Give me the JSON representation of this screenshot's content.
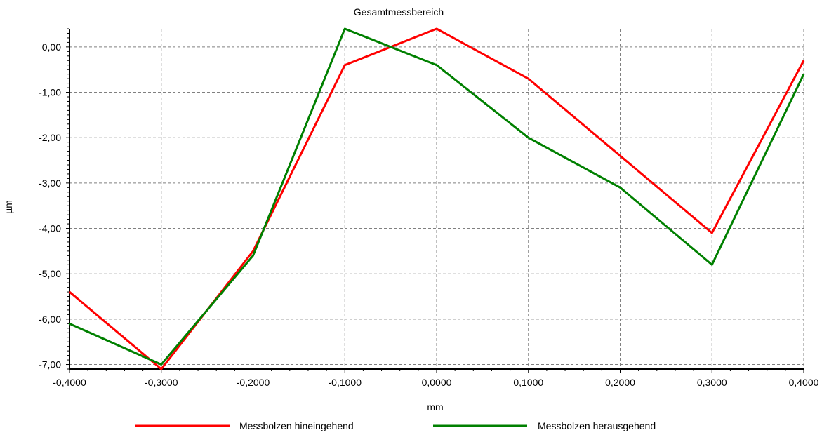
{
  "chart_data": {
    "type": "line",
    "title": "Gesamtmessbereich",
    "xlabel": "mm",
    "ylabel": "µm",
    "xlim": [
      -0.4,
      0.4
    ],
    "ylim": [
      -7.1,
      0.4
    ],
    "x_ticks": [
      -0.4,
      -0.3,
      -0.2,
      -0.1,
      0.0,
      0.1,
      0.2,
      0.3,
      0.4
    ],
    "x_tick_labels": [
      "-0,4000",
      "-0,3000",
      "-0,2000",
      "-0,1000",
      "0,0000",
      "0,1000",
      "0,2000",
      "0,3000",
      "0,4000"
    ],
    "y_ticks": [
      0,
      -1,
      -2,
      -3,
      -4,
      -5,
      -6,
      -7
    ],
    "y_tick_labels": [
      "0,00",
      "-1,00",
      "-2,00",
      "-3,00",
      "-4,00",
      "-5,00",
      "-6,00",
      "-7,00"
    ],
    "grid": true,
    "legend_position": "bottom",
    "series": [
      {
        "name": "Messbolzen hineingehend",
        "color": "#ff0000",
        "x": [
          -0.4,
          -0.3,
          -0.2,
          -0.1,
          0.0,
          0.1,
          0.2,
          0.3,
          0.4
        ],
        "y": [
          -5.4,
          -7.1,
          -4.5,
          -0.4,
          0.4,
          -0.7,
          -2.4,
          -4.1,
          -0.3
        ]
      },
      {
        "name": "Messbolzen herausgehend",
        "color": "#008000",
        "x": [
          -0.4,
          -0.3,
          -0.2,
          -0.1,
          0.0,
          0.1,
          0.2,
          0.3,
          0.4
        ],
        "y": [
          -6.1,
          -7.0,
          -4.6,
          0.4,
          -0.4,
          -2.0,
          -3.1,
          -4.8,
          -0.6
        ]
      }
    ]
  }
}
